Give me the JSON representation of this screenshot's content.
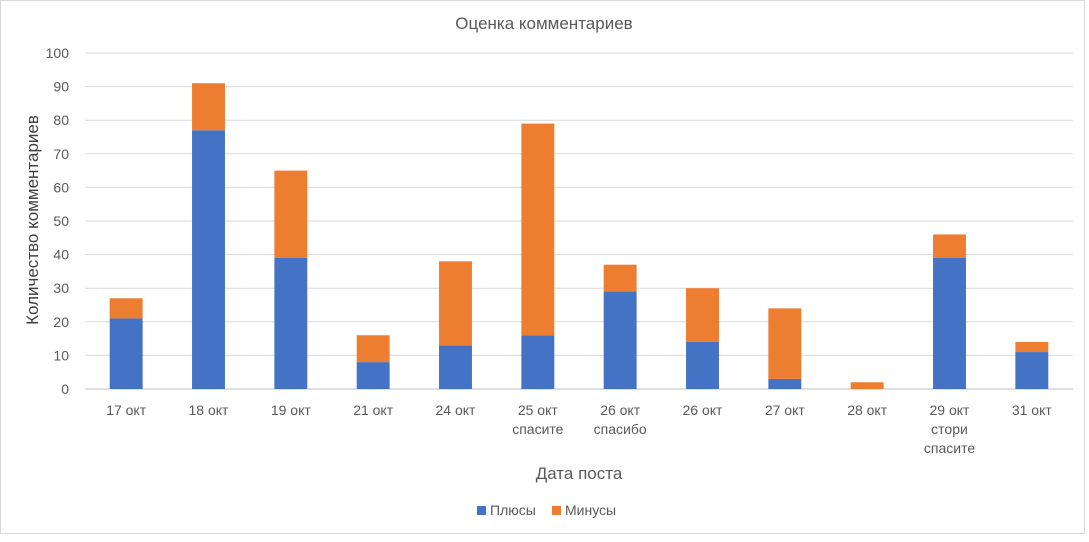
{
  "chart_data": {
    "type": "bar",
    "stacked": true,
    "title": "Оценка комментариев",
    "xlabel": "Дата поста",
    "ylabel": "Количество комментариев",
    "ylim": [
      0,
      100
    ],
    "yticks": [
      0,
      10,
      20,
      30,
      40,
      50,
      60,
      70,
      80,
      90,
      100
    ],
    "grid": true,
    "legend_position": "bottom",
    "categories": [
      [
        "17 окт"
      ],
      [
        "18 окт"
      ],
      [
        "19 окт"
      ],
      [
        "21 окт"
      ],
      [
        "24 окт"
      ],
      [
        "25 окт",
        "спасите"
      ],
      [
        "26 окт",
        "спасибо"
      ],
      [
        "26 окт"
      ],
      [
        "27 окт"
      ],
      [
        "28 окт"
      ],
      [
        "29 окт",
        "стори",
        "спасите"
      ],
      [
        "31 окт"
      ]
    ],
    "series": [
      {
        "name": "Плюсы",
        "color": "#4472c4",
        "values": [
          21,
          77,
          39,
          8,
          13,
          16,
          29,
          14,
          3,
          0,
          39,
          11
        ]
      },
      {
        "name": "Минусы",
        "color": "#ed7d31",
        "values": [
          6,
          14,
          26,
          8,
          25,
          63,
          8,
          16,
          21,
          2,
          7,
          3
        ]
      }
    ]
  }
}
